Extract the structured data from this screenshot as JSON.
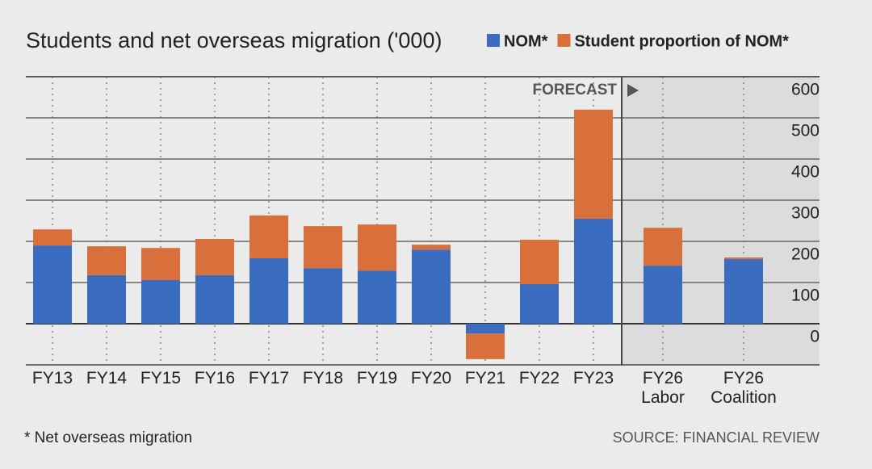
{
  "chart_data": {
    "type": "stacked_bar",
    "title": "Students and net overseas migration ('000)",
    "categories": [
      "FY13",
      "FY14",
      "FY15",
      "FY16",
      "FY17",
      "FY18",
      "FY19",
      "FY20",
      "FY21",
      "FY22",
      "FY23",
      "FY26 Labor",
      "FY26 Coalition"
    ],
    "series": [
      {
        "name": "NOM*",
        "color": "#3a6dbf",
        "values": [
          190,
          118,
          106,
          118,
          159,
          135,
          129,
          180,
          -24,
          96,
          255,
          141,
          157
        ]
      },
      {
        "name": "Student proportion of NOM*",
        "color": "#d96f3b",
        "values": [
          39,
          70,
          78,
          88,
          104,
          102,
          112,
          12,
          -62,
          108,
          265,
          92,
          4
        ]
      }
    ],
    "ylim": [
      -100,
      600
    ],
    "yticks": [
      0,
      100,
      200,
      300,
      400,
      500,
      600
    ],
    "grid": true,
    "annotation": "FORECAST",
    "footnote": "* Net overseas migration",
    "source": "SOURCE: FINANCIAL REVIEW"
  }
}
